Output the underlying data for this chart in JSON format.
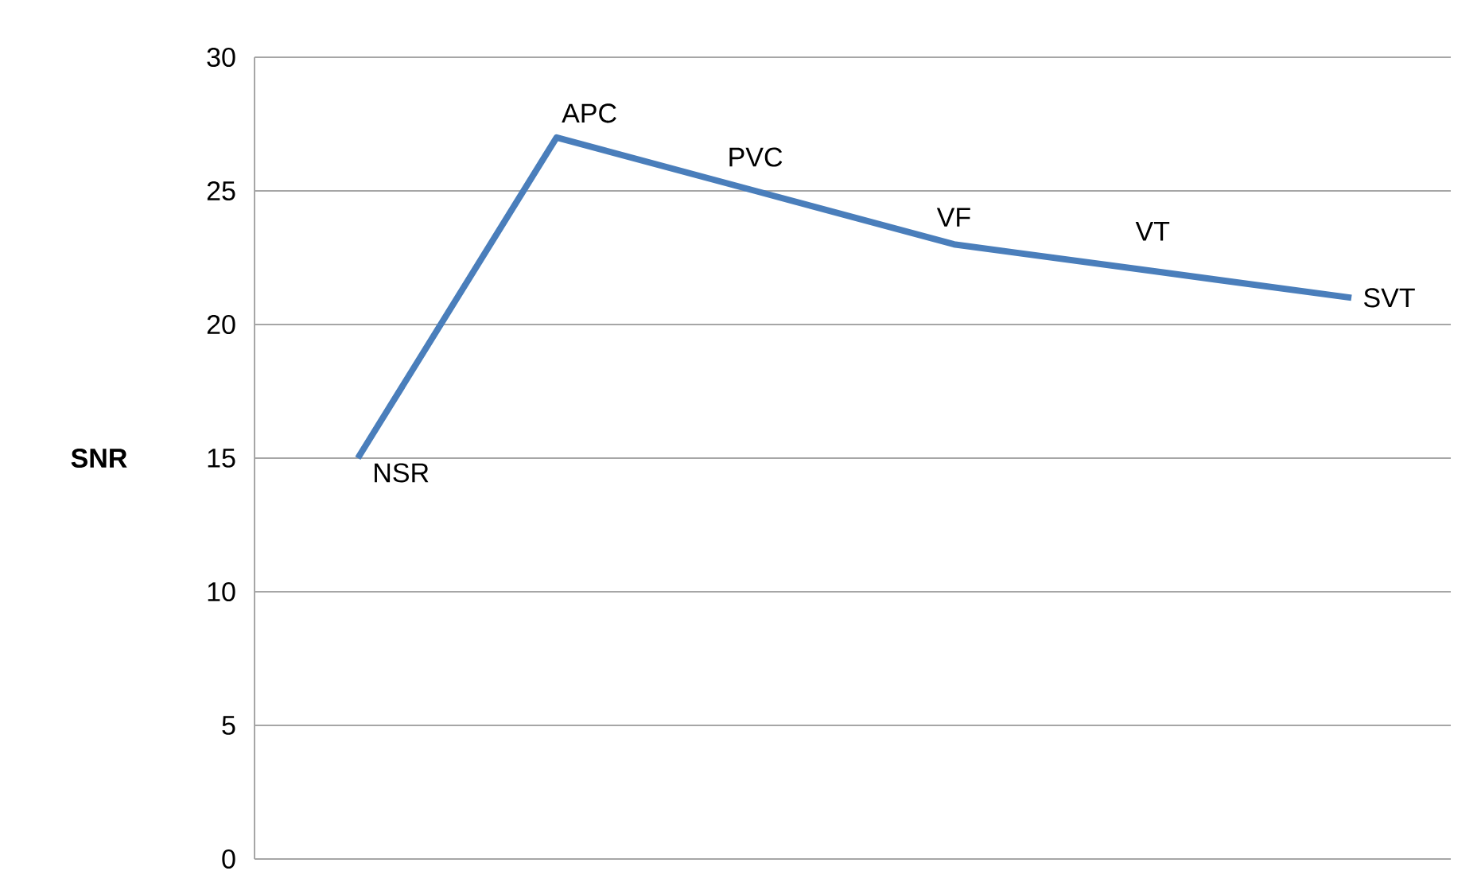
{
  "chart_data": {
    "type": "line",
    "ylabel": "**SNR**",
    "categories": [
      "NSR",
      "APC",
      "PVC",
      "VF",
      "VT",
      "SVT"
    ],
    "series": [
      {
        "color": "#4a7ebb",
        "values": [
          15,
          27,
          25,
          23,
          22,
          21
        ]
      }
    ],
    "ylim": [
      0,
      30
    ],
    "yticks": [
      0,
      5,
      10,
      15,
      20,
      25,
      30
    ],
    "grid": "y",
    "marker": "none",
    "line_style": "solid"
  }
}
